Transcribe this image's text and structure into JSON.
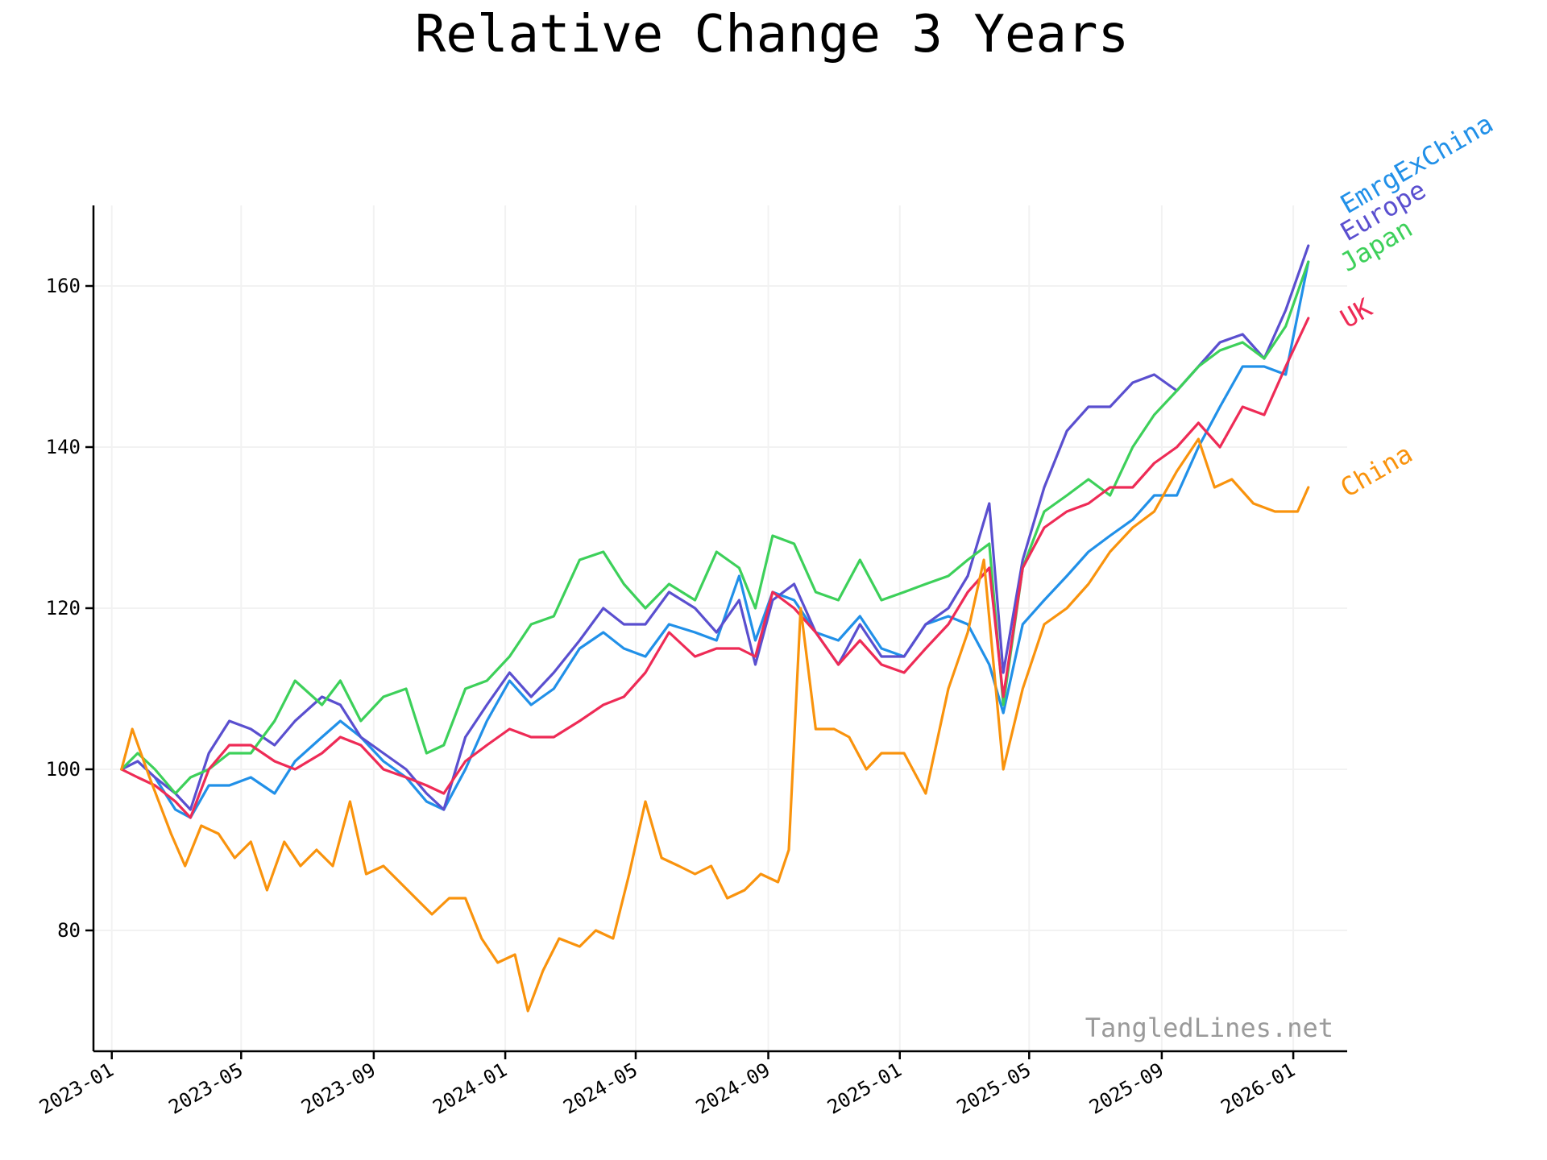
{
  "chart_data": {
    "type": "line",
    "title": "Relative Change 3 Years",
    "watermark": "TangledLines.net",
    "xlabel": "",
    "ylabel": "",
    "xlim": [
      "2022-12-15",
      "2026-02-20"
    ],
    "ylim": [
      65,
      170
    ],
    "grid": true,
    "legend": "right-of-line-ends",
    "y_ticks": [
      80,
      100,
      120,
      140,
      160
    ],
    "x_ticks": [
      "2023-01",
      "2023-05",
      "2023-09",
      "2024-01",
      "2024-05",
      "2024-09",
      "2025-01",
      "2025-05",
      "2025-09",
      "2026-01"
    ],
    "series": [
      {
        "name": "EmrgExChina",
        "color": "#2190e8",
        "x": [
          "2023-01-10",
          "2023-01-25",
          "2023-02-10",
          "2023-03-01",
          "2023-03-15",
          "2023-04-01",
          "2023-04-20",
          "2023-05-10",
          "2023-06-01",
          "2023-06-20",
          "2023-07-15",
          "2023-08-01",
          "2023-08-20",
          "2023-09-10",
          "2023-10-01",
          "2023-10-20",
          "2023-11-05",
          "2023-11-25",
          "2023-12-15",
          "2024-01-05",
          "2024-01-25",
          "2024-02-15",
          "2024-03-10",
          "2024-04-01",
          "2024-04-20",
          "2024-05-10",
          "2024-06-01",
          "2024-06-25",
          "2024-07-15",
          "2024-08-05",
          "2024-08-20",
          "2024-09-05",
          "2024-09-25",
          "2024-10-15",
          "2024-11-05",
          "2024-11-25",
          "2024-12-15",
          "2025-01-05",
          "2025-01-25",
          "2025-02-15",
          "2025-03-05",
          "2025-03-25",
          "2025-04-07",
          "2025-04-25",
          "2025-05-15",
          "2025-06-05",
          "2025-06-25",
          "2025-07-15",
          "2025-08-05",
          "2025-08-25",
          "2025-09-15",
          "2025-10-05",
          "2025-10-25",
          "2025-11-15",
          "2025-12-05",
          "2025-12-25",
          "2026-01-15"
        ],
        "values": [
          100,
          101,
          99,
          95,
          94,
          98,
          98,
          99,
          97,
          101,
          104,
          106,
          104,
          101,
          99,
          96,
          95,
          100,
          106,
          111,
          108,
          110,
          115,
          117,
          115,
          114,
          118,
          117,
          116,
          124,
          116,
          122,
          121,
          117,
          116,
          119,
          115,
          114,
          118,
          119,
          118,
          113,
          107,
          118,
          121,
          124,
          127,
          129,
          131,
          134,
          134,
          140,
          145,
          150,
          150,
          149,
          163
        ]
      },
      {
        "name": "Europe",
        "color": "#5a4fcf",
        "x": [
          "2023-01-10",
          "2023-01-25",
          "2023-02-10",
          "2023-03-01",
          "2023-03-15",
          "2023-04-01",
          "2023-04-20",
          "2023-05-10",
          "2023-06-01",
          "2023-06-20",
          "2023-07-15",
          "2023-08-01",
          "2023-08-20",
          "2023-09-10",
          "2023-10-01",
          "2023-10-20",
          "2023-11-05",
          "2023-11-25",
          "2023-12-15",
          "2024-01-05",
          "2024-01-25",
          "2024-02-15",
          "2024-03-10",
          "2024-04-01",
          "2024-04-20",
          "2024-05-10",
          "2024-06-01",
          "2024-06-25",
          "2024-07-15",
          "2024-08-05",
          "2024-08-20",
          "2024-09-05",
          "2024-09-25",
          "2024-10-15",
          "2024-11-05",
          "2024-11-25",
          "2024-12-15",
          "2025-01-05",
          "2025-01-25",
          "2025-02-15",
          "2025-03-05",
          "2025-03-25",
          "2025-04-07",
          "2025-04-25",
          "2025-05-15",
          "2025-06-05",
          "2025-06-25",
          "2025-07-15",
          "2025-08-05",
          "2025-08-25",
          "2025-09-15",
          "2025-10-05",
          "2025-10-25",
          "2025-11-15",
          "2025-12-05",
          "2025-12-25",
          "2026-01-15"
        ],
        "values": [
          100,
          101,
          99,
          97,
          95,
          102,
          106,
          105,
          103,
          106,
          109,
          108,
          104,
          102,
          100,
          97,
          95,
          104,
          108,
          112,
          109,
          112,
          116,
          120,
          118,
          118,
          122,
          120,
          117,
          121,
          113,
          121,
          123,
          117,
          113,
          118,
          114,
          114,
          118,
          120,
          124,
          133,
          112,
          126,
          135,
          142,
          145,
          145,
          148,
          149,
          147,
          150,
          153,
          154,
          151,
          157,
          165
        ]
      },
      {
        "name": "Japan",
        "color": "#3dd05a",
        "x": [
          "2023-01-10",
          "2023-01-25",
          "2023-02-10",
          "2023-03-01",
          "2023-03-15",
          "2023-04-01",
          "2023-04-20",
          "2023-05-10",
          "2023-06-01",
          "2023-06-20",
          "2023-07-15",
          "2023-08-01",
          "2023-08-20",
          "2023-09-10",
          "2023-10-01",
          "2023-10-20",
          "2023-11-05",
          "2023-11-25",
          "2023-12-15",
          "2024-01-05",
          "2024-01-25",
          "2024-02-15",
          "2024-03-10",
          "2024-04-01",
          "2024-04-20",
          "2024-05-10",
          "2024-06-01",
          "2024-06-25",
          "2024-07-15",
          "2024-08-05",
          "2024-08-20",
          "2024-09-05",
          "2024-09-25",
          "2024-10-15",
          "2024-11-05",
          "2024-11-25",
          "2024-12-15",
          "2025-01-05",
          "2025-01-25",
          "2025-02-15",
          "2025-03-05",
          "2025-03-25",
          "2025-04-07",
          "2025-04-25",
          "2025-05-15",
          "2025-06-05",
          "2025-06-25",
          "2025-07-15",
          "2025-08-05",
          "2025-08-25",
          "2025-09-15",
          "2025-10-05",
          "2025-10-25",
          "2025-11-15",
          "2025-12-05",
          "2025-12-25",
          "2026-01-15"
        ],
        "values": [
          100,
          102,
          100,
          97,
          99,
          100,
          102,
          102,
          106,
          111,
          108,
          111,
          106,
          109,
          110,
          102,
          103,
          110,
          111,
          114,
          118,
          119,
          126,
          127,
          123,
          120,
          123,
          121,
          127,
          125,
          120,
          129,
          128,
          122,
          121,
          126,
          121,
          122,
          123,
          124,
          126,
          128,
          108,
          125,
          132,
          134,
          136,
          134,
          140,
          144,
          147,
          150,
          152,
          153,
          151,
          155,
          163
        ]
      },
      {
        "name": "UK",
        "color": "#ee2b56",
        "x": [
          "2023-01-10",
          "2023-01-25",
          "2023-02-10",
          "2023-03-01",
          "2023-03-15",
          "2023-04-01",
          "2023-04-20",
          "2023-05-10",
          "2023-06-01",
          "2023-06-20",
          "2023-07-15",
          "2023-08-01",
          "2023-08-20",
          "2023-09-10",
          "2023-10-01",
          "2023-10-20",
          "2023-11-05",
          "2023-11-25",
          "2023-12-15",
          "2024-01-05",
          "2024-01-25",
          "2024-02-15",
          "2024-03-10",
          "2024-04-01",
          "2024-04-20",
          "2024-05-10",
          "2024-06-01",
          "2024-06-25",
          "2024-07-15",
          "2024-08-05",
          "2024-08-20",
          "2024-09-05",
          "2024-09-25",
          "2024-10-15",
          "2024-11-05",
          "2024-11-25",
          "2024-12-15",
          "2025-01-05",
          "2025-01-25",
          "2025-02-15",
          "2025-03-05",
          "2025-03-25",
          "2025-04-07",
          "2025-04-25",
          "2025-05-15",
          "2025-06-05",
          "2025-06-25",
          "2025-07-15",
          "2025-08-05",
          "2025-08-25",
          "2025-09-15",
          "2025-10-05",
          "2025-10-25",
          "2025-11-15",
          "2025-12-05",
          "2025-12-25",
          "2026-01-15"
        ],
        "values": [
          100,
          99,
          98,
          96,
          94,
          100,
          103,
          103,
          101,
          100,
          102,
          104,
          103,
          100,
          99,
          98,
          97,
          101,
          103,
          105,
          104,
          104,
          106,
          108,
          109,
          112,
          117,
          114,
          115,
          115,
          114,
          122,
          120,
          117,
          113,
          116,
          113,
          112,
          115,
          118,
          122,
          125,
          109,
          125,
          130,
          132,
          133,
          135,
          135,
          138,
          140,
          143,
          140,
          145,
          144,
          150,
          156
        ]
      },
      {
        "name": "China",
        "color": "#f9930d",
        "x": [
          "2023-01-10",
          "2023-01-20",
          "2023-02-05",
          "2023-02-25",
          "2023-03-10",
          "2023-03-25",
          "2023-04-10",
          "2023-04-25",
          "2023-05-10",
          "2023-05-25",
          "2023-06-10",
          "2023-06-25",
          "2023-07-10",
          "2023-07-25",
          "2023-08-10",
          "2023-08-25",
          "2023-09-10",
          "2023-09-25",
          "2023-10-10",
          "2023-10-25",
          "2023-11-10",
          "2023-11-25",
          "2023-12-10",
          "2023-12-25",
          "2024-01-10",
          "2024-01-22",
          "2024-02-05",
          "2024-02-20",
          "2024-03-10",
          "2024-03-25",
          "2024-04-10",
          "2024-04-25",
          "2024-05-10",
          "2024-05-25",
          "2024-06-10",
          "2024-06-25",
          "2024-07-10",
          "2024-07-25",
          "2024-08-10",
          "2024-08-25",
          "2024-09-10",
          "2024-09-20",
          "2024-10-01",
          "2024-10-15",
          "2024-11-01",
          "2024-11-15",
          "2024-12-01",
          "2024-12-15",
          "2025-01-05",
          "2025-01-25",
          "2025-02-15",
          "2025-03-05",
          "2025-03-20",
          "2025-04-07",
          "2025-04-25",
          "2025-05-15",
          "2025-06-05",
          "2025-06-25",
          "2025-07-15",
          "2025-08-05",
          "2025-08-25",
          "2025-09-15",
          "2025-10-05",
          "2025-10-20",
          "2025-11-05",
          "2025-11-25",
          "2025-12-15",
          "2026-01-05",
          "2026-01-15"
        ],
        "values": [
          100,
          105,
          99,
          92,
          88,
          93,
          92,
          89,
          91,
          85,
          91,
          88,
          90,
          88,
          96,
          87,
          88,
          86,
          84,
          82,
          84,
          84,
          79,
          76,
          77,
          70,
          75,
          79,
          78,
          80,
          79,
          87,
          96,
          89,
          88,
          87,
          88,
          84,
          85,
          87,
          86,
          90,
          120,
          105,
          105,
          104,
          100,
          102,
          102,
          97,
          110,
          117,
          126,
          100,
          110,
          118,
          120,
          123,
          127,
          130,
          132,
          137,
          141,
          135,
          136,
          133,
          132,
          132,
          135
        ]
      }
    ]
  }
}
